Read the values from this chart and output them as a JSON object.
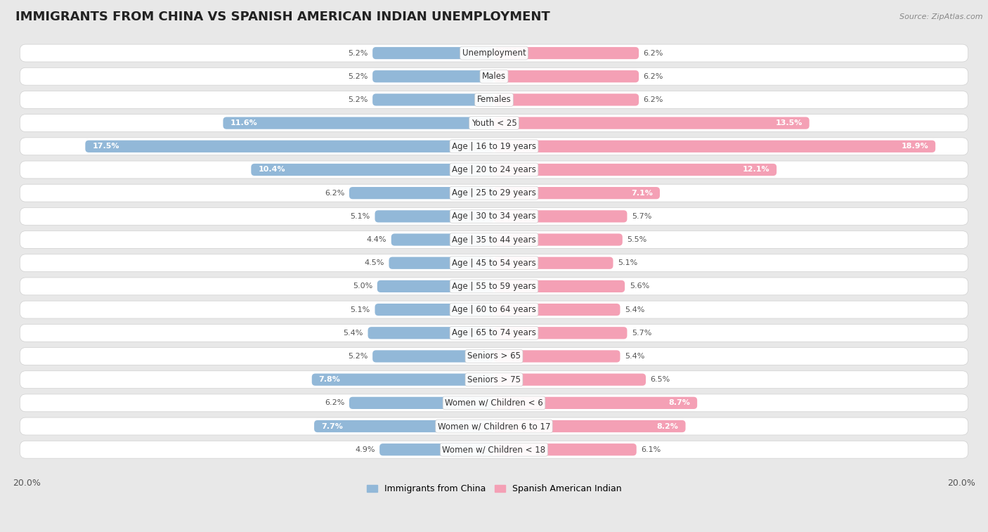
{
  "title": "IMMIGRANTS FROM CHINA VS SPANISH AMERICAN INDIAN UNEMPLOYMENT",
  "source": "Source: ZipAtlas.com",
  "categories": [
    "Unemployment",
    "Males",
    "Females",
    "Youth < 25",
    "Age | 16 to 19 years",
    "Age | 20 to 24 years",
    "Age | 25 to 29 years",
    "Age | 30 to 34 years",
    "Age | 35 to 44 years",
    "Age | 45 to 54 years",
    "Age | 55 to 59 years",
    "Age | 60 to 64 years",
    "Age | 65 to 74 years",
    "Seniors > 65",
    "Seniors > 75",
    "Women w/ Children < 6",
    "Women w/ Children 6 to 17",
    "Women w/ Children < 18"
  ],
  "china_values": [
    5.2,
    5.2,
    5.2,
    11.6,
    17.5,
    10.4,
    6.2,
    5.1,
    4.4,
    4.5,
    5.0,
    5.1,
    5.4,
    5.2,
    7.8,
    6.2,
    7.7,
    4.9
  ],
  "spanish_values": [
    6.2,
    6.2,
    6.2,
    13.5,
    18.9,
    12.1,
    7.1,
    5.7,
    5.5,
    5.1,
    5.6,
    5.4,
    5.7,
    5.4,
    6.5,
    8.7,
    8.2,
    6.1
  ],
  "china_color": "#92b8d8",
  "spanish_color": "#f4a0b5",
  "china_label": "Immigrants from China",
  "spanish_label": "Spanish American Indian",
  "axis_max": 20.0,
  "bg_color": "#e8e8e8",
  "row_bg": "#ffffff",
  "row_border": "#d0d0d0",
  "title_fontsize": 13,
  "label_fontsize": 8.5,
  "value_fontsize": 8.0
}
